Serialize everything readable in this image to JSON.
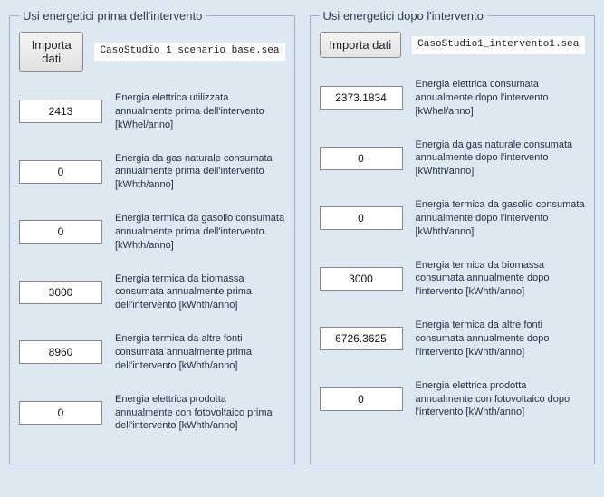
{
  "colors": {
    "page_background": "#dde8f2",
    "border": "#9bb0c4",
    "input_bg": "#ffffff",
    "text": "#2c3e50"
  },
  "panels": {
    "before": {
      "legend": "Usi energetici prima dell'intervento",
      "import_button_label": "Importa dati",
      "filename": "CasoStudio_1_scenario_base.sea",
      "fields": [
        {
          "value": "2413",
          "label": "Energia elettrica utilizzata annualmente prima dell'intervento [kWhel/anno]"
        },
        {
          "value": "0",
          "label": "Energia da gas naturale consumata annualmente prima dell'intervento [kWhth/anno]"
        },
        {
          "value": "0",
          "label": "Energia termica da gasolio consumata annualmente prima dell'intervento [kWhth/anno]"
        },
        {
          "value": "3000",
          "label": "Energia termica da biomassa consumata annualmente prima dell'intervento [kWhth/anno]"
        },
        {
          "value": "8960",
          "label": "Energia termica da altre fonti consumata annualmente prima dell'intervento [kWhth/anno]"
        },
        {
          "value": "0",
          "label": "Energia elettrica prodotta annualmente con fotovoltaico prima dell'intervento [kWhth/anno]"
        }
      ]
    },
    "after": {
      "legend": "Usi energetici dopo l'intervento",
      "import_button_label": "Importa dati",
      "filename": "CasoStudio1_intervento1.sea",
      "fields": [
        {
          "value": "2373.1834",
          "label": "Energia elettrica consumata annualmente dopo l'intervento [kWhel/anno]"
        },
        {
          "value": "0",
          "label": "Energia da gas naturale consumata annualmente dopo l'intervento [kWhth/anno]"
        },
        {
          "value": "0",
          "label": "Energia termica da gasolio consumata annualmente dopo l'intervento [kWhth/anno]"
        },
        {
          "value": "3000",
          "label": "Energia termica da biomassa consumata annualmente dopo l'intervento [kWhth/anno]"
        },
        {
          "value": "6726.3625",
          "label": "Energia termica da altre fonti consumata annualmente dopo l'intervento [kWhth/anno]"
        },
        {
          "value": "0",
          "label": "Energia elettrica prodotta annualmente con fotovoltaico dopo l'intervento [kWhth/anno]"
        }
      ]
    }
  }
}
